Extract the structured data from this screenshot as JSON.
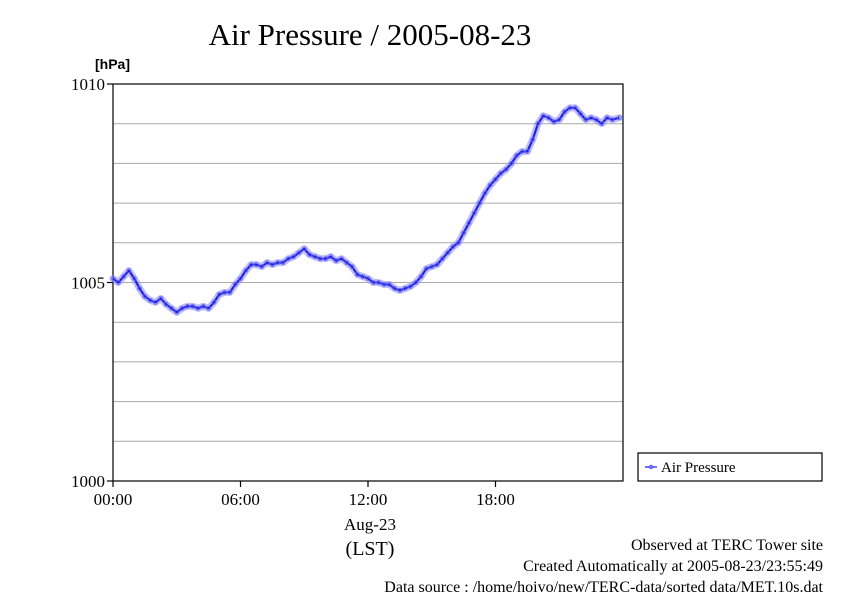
{
  "chart_data": {
    "type": "line",
    "title": "Air Pressure / 2005-08-23",
    "ylabel": "[hPa]",
    "xlabel": "Aug-23",
    "xlabel_sub": "(LST)",
    "ylim": [
      1000,
      1010
    ],
    "yticks": [
      {
        "value": 1000,
        "label": "1000"
      },
      {
        "value": 1005,
        "label": "1005"
      },
      {
        "value": 1010,
        "label": "1010"
      }
    ],
    "ygrid": [
      1001,
      1002,
      1003,
      1004,
      1005,
      1006,
      1007,
      1008,
      1009
    ],
    "xlim": [
      0,
      24
    ],
    "xticks": [
      {
        "value": 0,
        "label": "00:00"
      },
      {
        "value": 6,
        "label": "06:00"
      },
      {
        "value": 12,
        "label": "12:00"
      },
      {
        "value": 18,
        "label": "18:00"
      }
    ],
    "grid": "horizontal",
    "legend": "right",
    "series": [
      {
        "name": "Air Pressure",
        "color": "#4444ff",
        "x": [
          0.0,
          0.25,
          0.5,
          0.75,
          1.0,
          1.25,
          1.5,
          1.75,
          2.0,
          2.25,
          2.5,
          2.75,
          3.0,
          3.25,
          3.5,
          3.75,
          4.0,
          4.25,
          4.5,
          4.75,
          5.0,
          5.25,
          5.5,
          5.75,
          6.0,
          6.25,
          6.5,
          6.75,
          7.0,
          7.25,
          7.5,
          7.75,
          8.0,
          8.25,
          8.5,
          8.75,
          9.0,
          9.25,
          9.5,
          9.75,
          10.0,
          10.25,
          10.5,
          10.75,
          11.0,
          11.25,
          11.5,
          11.75,
          12.0,
          12.25,
          12.5,
          12.75,
          13.0,
          13.25,
          13.5,
          13.75,
          14.0,
          14.25,
          14.5,
          14.75,
          15.0,
          15.25,
          15.5,
          15.75,
          16.0,
          16.25,
          16.5,
          16.75,
          17.0,
          17.25,
          17.5,
          17.75,
          18.0,
          18.25,
          18.5,
          18.75,
          19.0,
          19.25,
          19.5,
          19.75,
          20.0,
          20.25,
          20.5,
          20.75,
          21.0,
          21.25,
          21.5,
          21.75,
          22.0,
          22.25,
          22.5,
          22.75,
          23.0,
          23.25,
          23.5,
          23.83
        ],
        "values": [
          1005.1,
          1005.0,
          1005.15,
          1005.3,
          1005.1,
          1004.85,
          1004.65,
          1004.55,
          1004.5,
          1004.6,
          1004.45,
          1004.35,
          1004.25,
          1004.35,
          1004.4,
          1004.4,
          1004.35,
          1004.4,
          1004.35,
          1004.5,
          1004.7,
          1004.75,
          1004.75,
          1004.95,
          1005.1,
          1005.3,
          1005.45,
          1005.45,
          1005.4,
          1005.5,
          1005.45,
          1005.5,
          1005.5,
          1005.6,
          1005.65,
          1005.75,
          1005.85,
          1005.7,
          1005.65,
          1005.6,
          1005.6,
          1005.65,
          1005.55,
          1005.6,
          1005.5,
          1005.4,
          1005.2,
          1005.15,
          1005.1,
          1005.0,
          1005.0,
          1004.95,
          1004.95,
          1004.85,
          1004.8,
          1004.85,
          1004.9,
          1005.0,
          1005.15,
          1005.35,
          1005.4,
          1005.45,
          1005.6,
          1005.75,
          1005.9,
          1006.0,
          1006.25,
          1006.5,
          1006.75,
          1007.0,
          1007.25,
          1007.45,
          1007.6,
          1007.75,
          1007.85,
          1008.0,
          1008.2,
          1008.3,
          1008.3,
          1008.6,
          1009.0,
          1009.2,
          1009.15,
          1009.05,
          1009.1,
          1009.3,
          1009.4,
          1009.4,
          1009.25,
          1009.1,
          1009.15,
          1009.1,
          1009.0,
          1009.15,
          1009.1,
          1009.15
        ]
      }
    ]
  },
  "footer": {
    "line1": "Observed at TERC Tower site",
    "line2": "Created Automatically at 2005-08-23/23:55:49",
    "line3": "Data source : /home/hoivo/new/TERC-data/sorted  data/MET.10s.dat"
  }
}
